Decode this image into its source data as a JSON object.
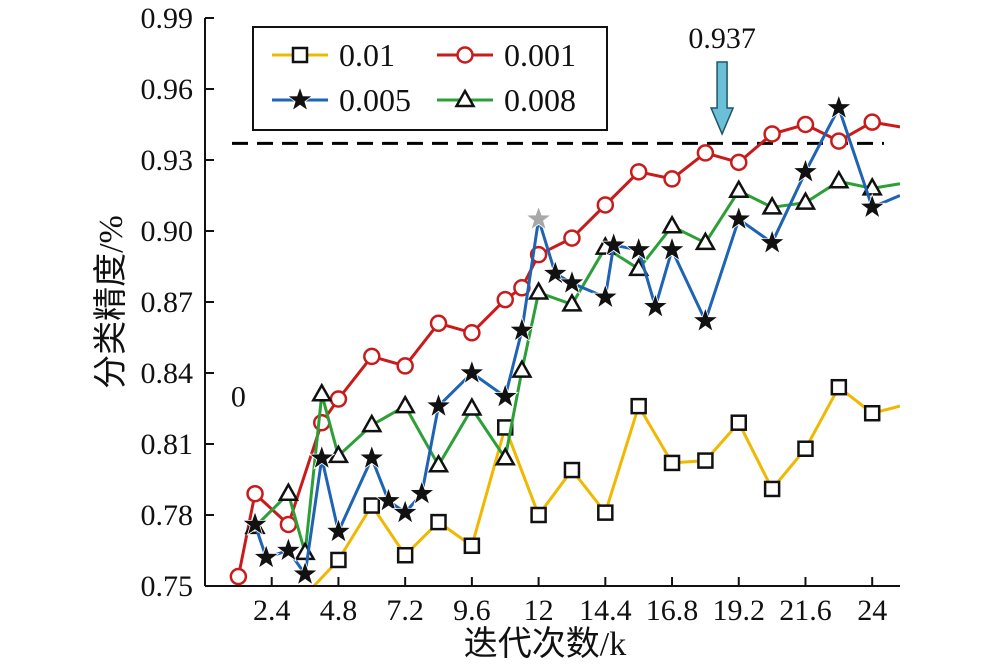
{
  "chart_data": {
    "type": "line",
    "xlabel": "迭代次数/k",
    "ylabel": "分类精度/%",
    "xlim": [
      0,
      25
    ],
    "ylim": [
      0.75,
      0.99
    ],
    "x_ticks": [
      2.4,
      4.8,
      7.2,
      9.6,
      12,
      14.4,
      16.8,
      19.2,
      21.6,
      24
    ],
    "y_ticks": [
      0.75,
      0.78,
      0.81,
      0.84,
      0.87,
      0.9,
      0.93,
      0.96,
      0.99
    ],
    "x_tick_labels": [
      "2.4",
      "4.8",
      "7.2",
      "9.6",
      "12",
      "14.4",
      "16.8",
      "19.2",
      "21.6",
      "24"
    ],
    "y_tick_labels": [
      "0.75",
      "0.78",
      "0.81",
      "0.84",
      "0.87",
      "0.90",
      "0.93",
      "0.96",
      "0.99"
    ],
    "legend_position": "top-left",
    "reference_line": {
      "y": 0.937,
      "style": "dashed",
      "color": "#000000"
    },
    "annotations": [
      {
        "text": "0.937",
        "x": 18.6,
        "y": 0.956,
        "arrow": true,
        "color": "#6bbfd6"
      },
      {
        "text": "0",
        "x": 1.2,
        "y": 0.83
      }
    ],
    "series": [
      {
        "name": "0.01",
        "color": "#f0b800",
        "marker": "square",
        "x": [
          3.6,
          4.8,
          6.0,
          7.2,
          8.4,
          9.6,
          10.8,
          12.0,
          13.2,
          14.4,
          15.6,
          16.8,
          18.0,
          19.2,
          20.4,
          21.6,
          22.8,
          24.0,
          25.0
        ],
        "y": [
          0.746,
          0.761,
          0.784,
          0.763,
          0.777,
          0.767,
          0.817,
          0.78,
          0.799,
          0.781,
          0.826,
          0.802,
          0.803,
          0.819,
          0.791,
          0.808,
          0.834,
          0.823,
          0.826
        ]
      },
      {
        "name": "0.001",
        "color": "#c91b1b",
        "marker": "circle",
        "x": [
          1.2,
          1.8,
          3.0,
          4.2,
          4.8,
          6.0,
          7.2,
          8.4,
          9.6,
          10.8,
          11.4,
          12.0,
          13.2,
          14.4,
          15.6,
          16.8,
          18.0,
          19.2,
          20.4,
          21.6,
          22.8,
          24.0,
          25.0
        ],
        "y": [
          0.754,
          0.789,
          0.776,
          0.819,
          0.829,
          0.847,
          0.843,
          0.861,
          0.857,
          0.871,
          0.876,
          0.89,
          0.897,
          0.911,
          0.925,
          0.922,
          0.933,
          0.929,
          0.941,
          0.945,
          0.938,
          0.946,
          0.944
        ]
      },
      {
        "name": "0.005",
        "color": "#1e63b4",
        "marker": "star",
        "x": [
          1.8,
          2.2,
          3.0,
          3.6,
          4.2,
          4.8,
          6.0,
          6.6,
          7.2,
          7.8,
          8.4,
          9.6,
          10.8,
          11.4,
          12.0,
          12.6,
          13.2,
          14.4,
          14.7,
          15.6,
          16.2,
          16.8,
          18.0,
          19.2,
          20.4,
          21.6,
          22.8,
          24.0,
          25.0
        ],
        "y": [
          0.776,
          0.762,
          0.765,
          0.755,
          0.804,
          0.773,
          0.804,
          0.786,
          0.781,
          0.789,
          0.826,
          0.84,
          0.83,
          0.858,
          0.905,
          0.882,
          0.878,
          0.872,
          0.894,
          0.892,
          0.868,
          0.892,
          0.862,
          0.905,
          0.895,
          0.925,
          0.952,
          0.91,
          0.915
        ]
      },
      {
        "name": "0.008",
        "color": "#2ca037",
        "marker": "triangle",
        "x": [
          1.8,
          3.0,
          3.6,
          4.2,
          4.8,
          6.0,
          7.2,
          8.4,
          9.6,
          10.8,
          11.4,
          12.0,
          13.2,
          14.4,
          15.6,
          16.8,
          18.0,
          19.2,
          20.4,
          21.6,
          22.8,
          24.0,
          25.0
        ],
        "y": [
          0.775,
          0.789,
          0.764,
          0.831,
          0.805,
          0.818,
          0.826,
          0.801,
          0.825,
          0.804,
          0.841,
          0.874,
          0.869,
          0.893,
          0.884,
          0.902,
          0.895,
          0.917,
          0.91,
          0.912,
          0.921,
          0.918,
          0.92
        ]
      }
    ]
  }
}
